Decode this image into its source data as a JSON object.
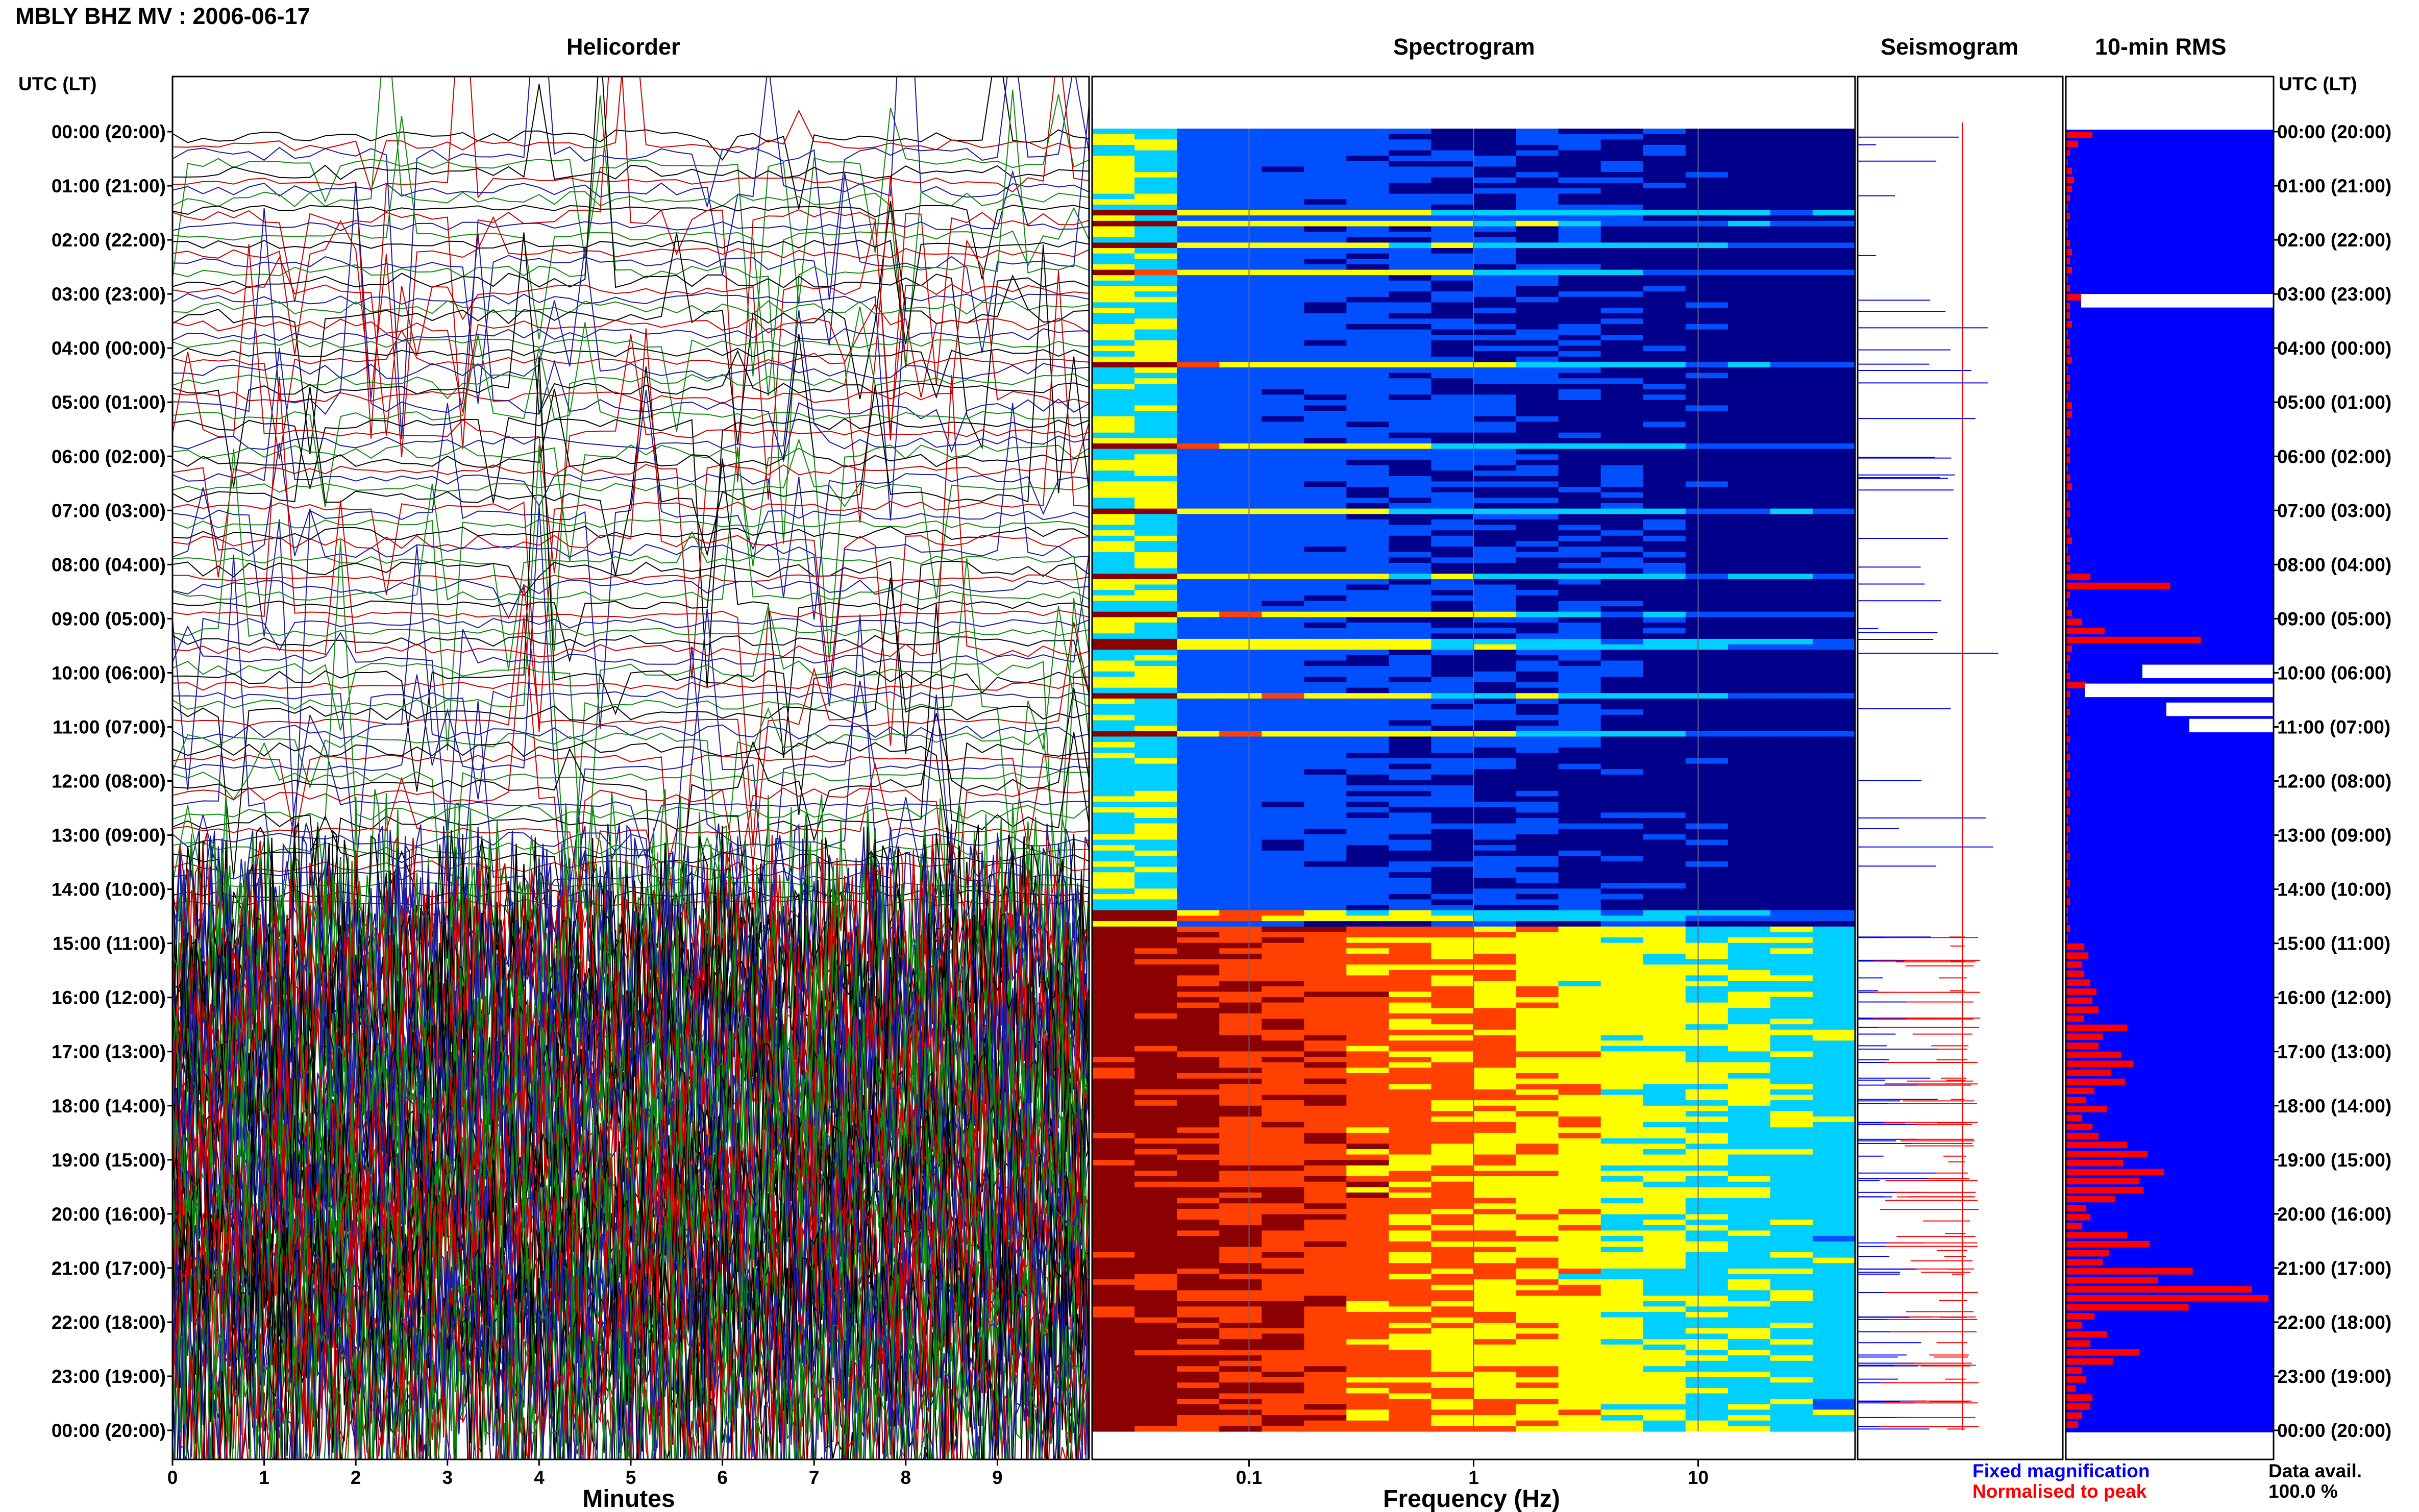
{
  "header": {
    "station_date": "MBLY BHZ MV : 2006-06-17"
  },
  "panels": {
    "helicorder_title": "Helicorder",
    "spectrogram_title": "Spectrogram",
    "seismogram_title": "Seismogram",
    "rms_title": "10-min RMS"
  },
  "time_axis": {
    "label_left": "UTC (LT)",
    "label_right": "UTC (LT)",
    "hours": [
      "00:00 (20:00)",
      "01:00 (21:00)",
      "02:00 (22:00)",
      "03:00 (23:00)",
      "04:00 (00:00)",
      "05:00 (01:00)",
      "06:00 (02:00)",
      "07:00 (03:00)",
      "08:00 (04:00)",
      "09:00 (05:00)",
      "10:00 (06:00)",
      "11:00 (07:00)",
      "12:00 (08:00)",
      "13:00 (09:00)",
      "14:00 (10:00)",
      "15:00 (11:00)",
      "16:00 (12:00)",
      "17:00 (13:00)",
      "18:00 (14:00)",
      "19:00 (15:00)",
      "20:00 (16:00)",
      "21:00 (17:00)",
      "22:00 (18:00)",
      "23:00 (19:00)",
      "00:00 (20:00)"
    ]
  },
  "legend": {
    "fixed": "Fixed magnification",
    "normalised": "Normalised to peak",
    "fixed_color": "#0000ff",
    "normalised_color": "#ff0000"
  },
  "availability": {
    "label": "Data avail.",
    "value": "100.0 %"
  },
  "chart_data": [
    {
      "type": "line",
      "panel": "Helicorder",
      "xlabel": "Minutes",
      "x_ticks": [
        "0",
        "1",
        "2",
        "3",
        "4",
        "5",
        "6",
        "7",
        "8",
        "9"
      ],
      "xlim": [
        0,
        10
      ],
      "trace_colors": [
        "#000000",
        "#cc0000",
        "#1a1aa0",
        "#108a10"
      ],
      "rows": 144,
      "activity": "low-amplitude traces with large spikes until ~14:00 UTC, then high-amplitude continuous tremor to 24:00"
    },
    {
      "type": "heatmap",
      "panel": "Spectrogram",
      "xlabel": "Frequency (Hz)",
      "x_ticks": [
        "0.1",
        "1",
        "10"
      ],
      "x_scale": "log",
      "xlim": [
        0.02,
        50
      ],
      "colormap": [
        "#00008b",
        "#0050ff",
        "#00d0ff",
        "#ffff00",
        "#ff4000",
        "#8b0000"
      ],
      "pattern": "blue (low energy) until ~14:30 UTC, red/yellow (high energy) 14:30–24:00"
    },
    {
      "type": "line",
      "panel": "Seismogram",
      "series": [
        {
          "name": "Fixed magnification",
          "color": "#0000ff"
        },
        {
          "name": "Normalised to peak",
          "color": "#ff0000"
        }
      ]
    },
    {
      "type": "bar",
      "panel": "10-min RMS",
      "bar_color_fixed": "#0000ff",
      "bar_color_normalised": "#ff0000",
      "series": [
        {
          "name": "Normalised to peak",
          "values": [
            0.13,
            0.06,
            0.02,
            0.01,
            0.03,
            0.04,
            0.03,
            0.02,
            0.01,
            0.02,
            0.01,
            0.01,
            0.02,
            0.03,
            0.02,
            0.03,
            0.01,
            0.02,
            0.09,
            0.02,
            0.02,
            0.03,
            0.01,
            0.02,
            0.02,
            0.03,
            0.01,
            0.02,
            0.02,
            0.01,
            0.03,
            0.03,
            0.01,
            0.02,
            0.01,
            0.02,
            0.02,
            0.01,
            0.02,
            0.03,
            0.01,
            0.02,
            0.02,
            0.01,
            0.02,
            0.03,
            0.01,
            0.02,
            0.02,
            0.12,
            0.51,
            0.02,
            0.01,
            0.03,
            0.08,
            0.19,
            0.66,
            0.03,
            0.02,
            0.01,
            0.02,
            0.1,
            0.02,
            0.01,
            0.02,
            0.01,
            0.01,
            0.02,
            0.01,
            0.02,
            0.01,
            0.02,
            0.01,
            0.02,
            0.01,
            0.02,
            0.01,
            0.02,
            0.01,
            0.01,
            0.02,
            0.01,
            0.01,
            0.02,
            0.01,
            0.02,
            0.01,
            0.01,
            0.02,
            0.01,
            0.09,
            0.11,
            0.08,
            0.09,
            0.12,
            0.15,
            0.13,
            0.16,
            0.09,
            0.3,
            0.18,
            0.16,
            0.27,
            0.33,
            0.22,
            0.29,
            0.14,
            0.1,
            0.2,
            0.08,
            0.13,
            0.16,
            0.3,
            0.4,
            0.28,
            0.48,
            0.36,
            0.38,
            0.24,
            0.1,
            0.12,
            0.08,
            0.3,
            0.41,
            0.21,
            0.18,
            0.62,
            0.45,
            0.91,
            0.99,
            0.6,
            0.14,
            0.08,
            0.2,
            0.12,
            0.36,
            0.23,
            0.08,
            0.1,
            0.05,
            0.13,
            0.12,
            0.08,
            0.06
          ]
        }
      ]
    }
  ]
}
